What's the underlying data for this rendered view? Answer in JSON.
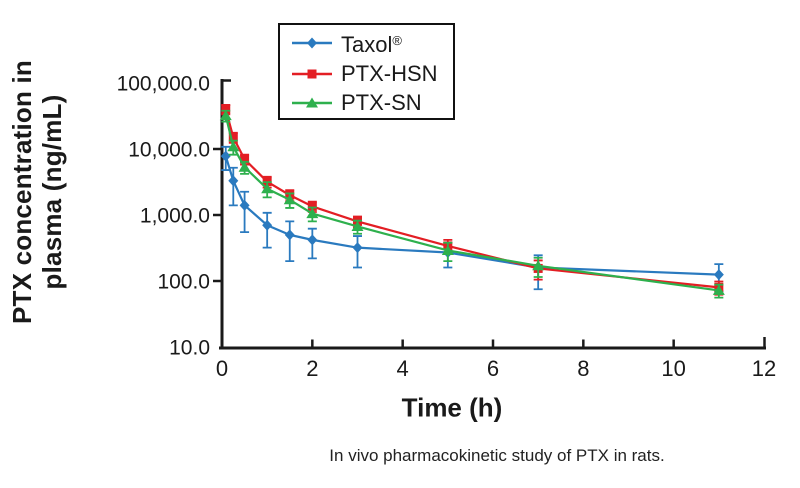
{
  "figure": {
    "caption": "In vivo pharmacokinetic study of PTX in rats."
  },
  "chart_data": {
    "type": "line",
    "title": "",
    "xlabel": "Time (h)",
    "ylabel": "PTX concentration in plasma (ng/mL)",
    "ylabel_lines": [
      "PTX concentration in",
      "plasma (ng/mL)"
    ],
    "x_scale": "linear",
    "y_scale": "log",
    "xlim": [
      0,
      12
    ],
    "ylim": [
      10,
      100000
    ],
    "x_ticks": [
      0,
      2,
      4,
      6,
      8,
      10,
      12
    ],
    "y_ticks": [
      10,
      100,
      1000,
      10000,
      100000
    ],
    "y_tick_labels": [
      "10.0",
      "100.0",
      "1,000.0",
      "10,000.0",
      "100,000.0"
    ],
    "grid": false,
    "legend_position": "inside-top-center",
    "x": [
      0.083,
      0.25,
      0.5,
      1,
      1.5,
      2,
      3,
      5,
      7,
      11
    ],
    "series": [
      {
        "name": "Taxol®",
        "color": "#2a7abf",
        "marker": "diamond",
        "values": [
          7800,
          3300,
          1400,
          700,
          500,
          420,
          320,
          270,
          160,
          125
        ],
        "errors": [
          3000,
          1900,
          850,
          380,
          300,
          200,
          160,
          110,
          85,
          55
        ]
      },
      {
        "name": "PTX-HSN",
        "color": "#e31e24",
        "marker": "square",
        "values": [
          40000,
          15000,
          7000,
          3200,
          2000,
          1350,
          800,
          340,
          155,
          80
        ],
        "errors": [
          6500,
          2600,
          1200,
          600,
          380,
          240,
          150,
          80,
          50,
          18
        ]
      },
      {
        "name": "PTX-SN",
        "color": "#2eb04d",
        "marker": "triangle",
        "values": [
          32000,
          10800,
          5300,
          2500,
          1700,
          1050,
          670,
          290,
          170,
          72
        ],
        "errors": [
          6000,
          2600,
          1100,
          650,
          420,
          250,
          150,
          90,
          55,
          16
        ]
      }
    ]
  }
}
